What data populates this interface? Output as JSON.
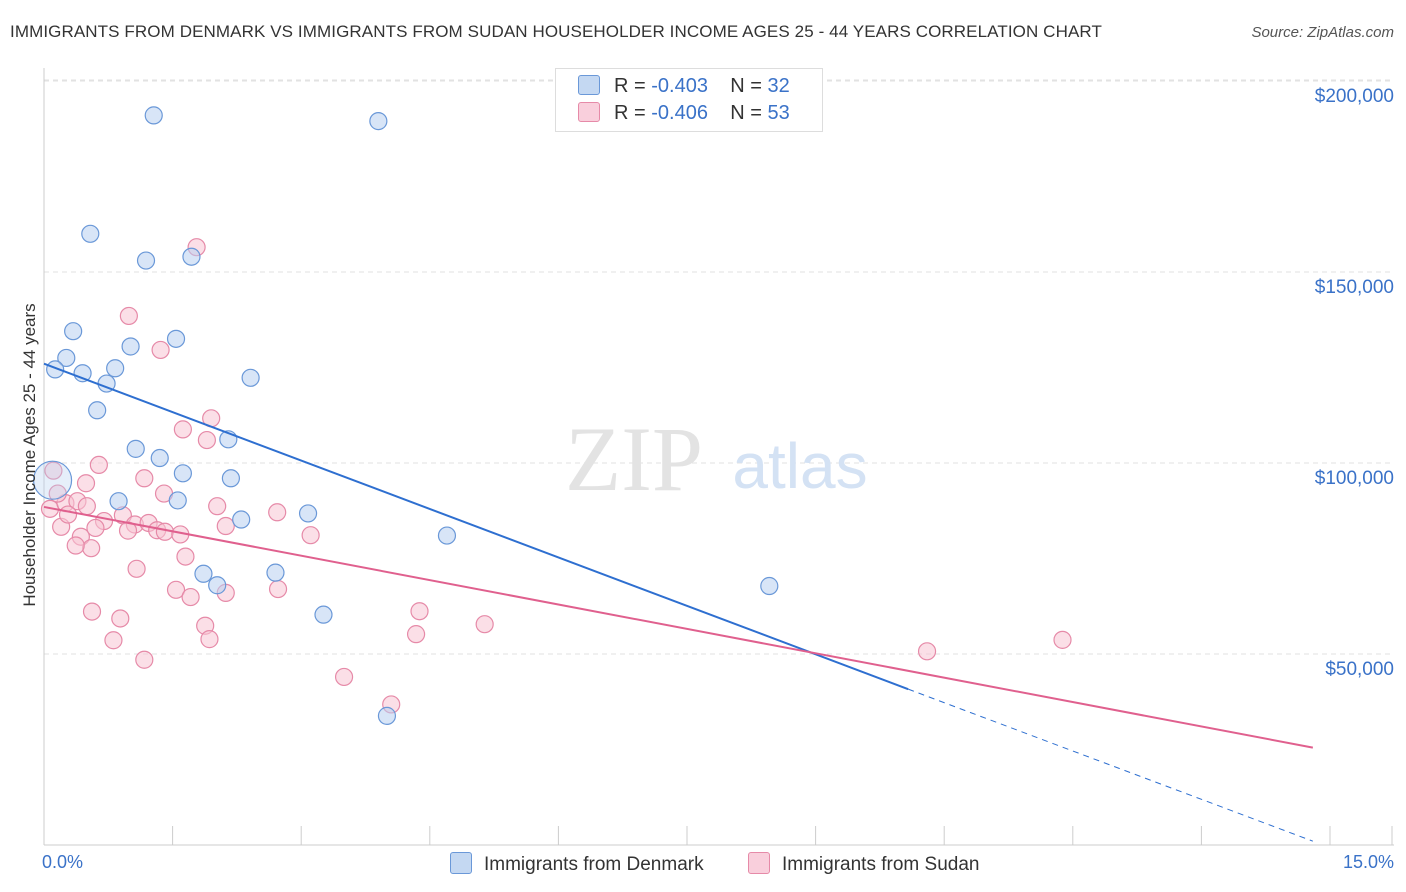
{
  "title": "IMMIGRANTS FROM DENMARK VS IMMIGRANTS FROM SUDAN HOUSEHOLDER INCOME AGES 25 - 44 YEARS CORRELATION CHART",
  "source": "Source: ZipAtlas.com",
  "watermark": {
    "zip": "ZIP",
    "atlas": "atlas"
  },
  "legend": {
    "r_label": "R =",
    "n_label": "N =",
    "denmark": {
      "r": "-0.403",
      "n": "32"
    },
    "sudan": {
      "r": "-0.406",
      "n": "53"
    }
  },
  "colors": {
    "denmark_fill": "#b8d0f0",
    "denmark_stroke": "#6a98d8",
    "denmark_line": "#2e6fd0",
    "sudan_fill": "#f8c4d4",
    "sudan_stroke": "#e68aa8",
    "sudan_line": "#e0608e",
    "tick_text": "#3a72c8"
  },
  "chart_data": {
    "type": "scatter",
    "title": "IMMIGRANTS FROM DENMARK VS IMMIGRANTS FROM SUDAN HOUSEHOLDER INCOME AGES 25 - 44 YEARS CORRELATION CHART",
    "xlabel": "",
    "ylabel": "Householder Income Ages 25 - 44 years",
    "xlim": [
      0,
      15
    ],
    "ylim": [
      0,
      200000
    ],
    "x_tick_labels": [
      "0.0%",
      "15.0%"
    ],
    "y_ticks": [
      50000,
      100000,
      150000,
      200000
    ],
    "y_tick_labels": [
      "$50,000",
      "$100,000",
      "$150,000",
      "$200,000"
    ],
    "grid": true,
    "series": [
      {
        "name": "Immigrants from Denmark",
        "points": [
          [
            1.28,
            191000
          ],
          [
            3.9,
            189500
          ],
          [
            0.54,
            160000
          ],
          [
            1.19,
            153000
          ],
          [
            1.72,
            154000
          ],
          [
            0.34,
            134500
          ],
          [
            1.54,
            132500
          ],
          [
            0.26,
            127500
          ],
          [
            0.13,
            124500
          ],
          [
            1.01,
            130500
          ],
          [
            0.83,
            124800
          ],
          [
            0.45,
            123500
          ],
          [
            0.73,
            120800
          ],
          [
            2.41,
            122300
          ],
          [
            0.62,
            113800
          ],
          [
            2.15,
            106200
          ],
          [
            1.07,
            103700
          ],
          [
            1.35,
            101300
          ],
          [
            1.62,
            97300
          ],
          [
            2.18,
            96000
          ],
          [
            0.87,
            90000
          ],
          [
            1.56,
            90200
          ],
          [
            3.08,
            86800
          ],
          [
            2.3,
            85200
          ],
          [
            4.7,
            81000
          ],
          [
            1.86,
            71000
          ],
          [
            2.02,
            68000
          ],
          [
            2.7,
            71300
          ],
          [
            3.26,
            60300
          ],
          [
            8.46,
            67800
          ],
          [
            4.0,
            33800
          ],
          [
            0.1,
            95500
          ]
        ],
        "trend_start": [
          0,
          126000
        ],
        "trend_solid_end": [
          10.08,
          40800
        ],
        "trend_dashed_end": [
          14.8,
          1000
        ]
      },
      {
        "name": "Immigrants from Sudan",
        "points": [
          [
            1.78,
            156500
          ],
          [
            0.99,
            138500
          ],
          [
            1.36,
            129600
          ],
          [
            1.95,
            111700
          ],
          [
            1.62,
            108800
          ],
          [
            1.9,
            106000
          ],
          [
            0.64,
            99500
          ],
          [
            0.11,
            98000
          ],
          [
            0.07,
            88000
          ],
          [
            0.25,
            89500
          ],
          [
            0.39,
            90000
          ],
          [
            0.49,
            94700
          ],
          [
            0.5,
            88700
          ],
          [
            1.17,
            96000
          ],
          [
            1.4,
            92000
          ],
          [
            2.02,
            88700
          ],
          [
            2.72,
            87100
          ],
          [
            0.92,
            86300
          ],
          [
            0.7,
            84800
          ],
          [
            1.06,
            83900
          ],
          [
            1.22,
            84300
          ],
          [
            1.32,
            82400
          ],
          [
            1.41,
            82000
          ],
          [
            1.59,
            81300
          ],
          [
            2.12,
            83500
          ],
          [
            0.98,
            82300
          ],
          [
            0.2,
            83300
          ],
          [
            3.11,
            81100
          ],
          [
            0.43,
            80700
          ],
          [
            0.55,
            77700
          ],
          [
            0.37,
            78400
          ],
          [
            1.65,
            75500
          ],
          [
            1.08,
            72300
          ],
          [
            1.54,
            66800
          ],
          [
            1.71,
            64900
          ],
          [
            2.12,
            66000
          ],
          [
            2.73,
            67000
          ],
          [
            0.56,
            61100
          ],
          [
            0.89,
            59300
          ],
          [
            1.88,
            57400
          ],
          [
            0.81,
            53600
          ],
          [
            1.93,
            53900
          ],
          [
            1.17,
            48500
          ],
          [
            4.38,
            61200
          ],
          [
            4.34,
            55200
          ],
          [
            5.14,
            57800
          ],
          [
            3.5,
            44000
          ],
          [
            4.05,
            36800
          ],
          [
            10.3,
            50700
          ],
          [
            11.88,
            53700
          ],
          [
            0.16,
            92000
          ],
          [
            0.28,
            86500
          ],
          [
            0.6,
            83000
          ]
        ],
        "trend_start": [
          0,
          88500
        ],
        "trend_end": [
          14.8,
          25500
        ]
      }
    ]
  },
  "bottom_legend": {
    "denmark": "Immigrants from Denmark",
    "sudan": "Immigrants from Sudan"
  }
}
